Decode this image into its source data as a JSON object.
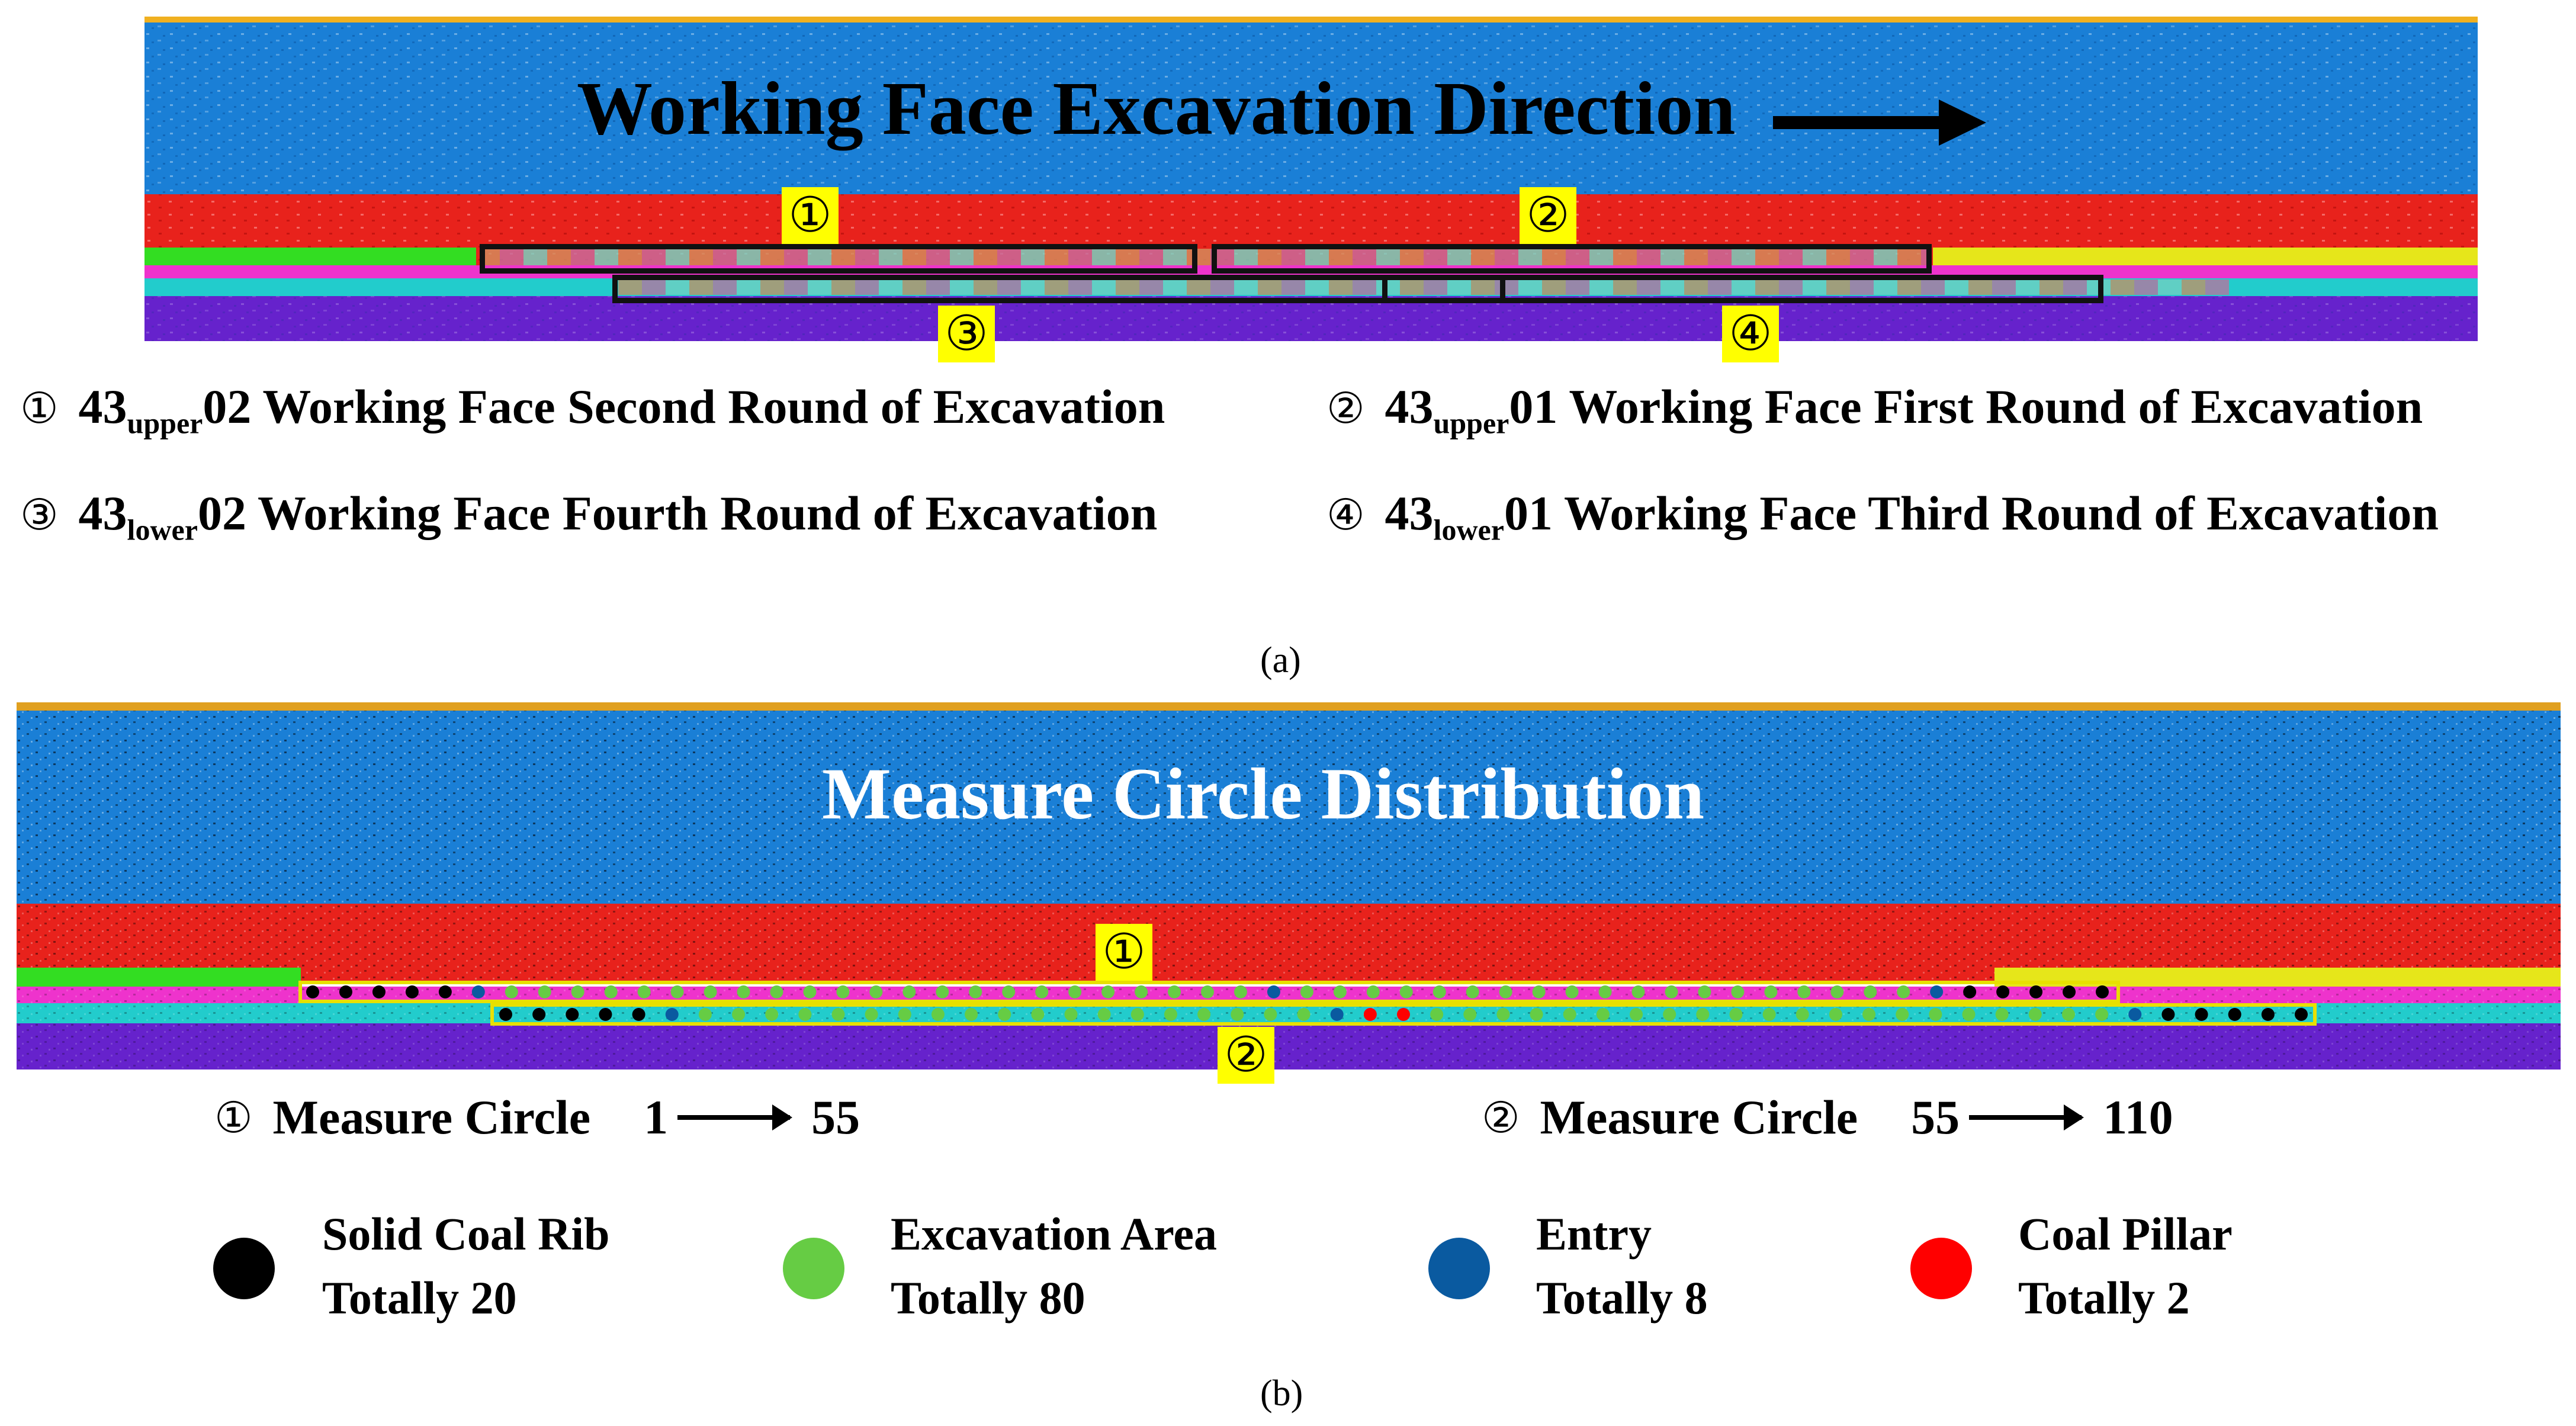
{
  "panel_a": {
    "title": "Working Face Excavation Direction",
    "tags": [
      "①",
      "②",
      "③",
      "④"
    ],
    "legend": [
      {
        "num": "①",
        "pre": "43",
        "sub": "upper",
        "post": "02 Working Face Second Round of Excavation"
      },
      {
        "num": "②",
        "pre": "43",
        "sub": "upper",
        "post": "01 Working Face First Round of Excavation"
      },
      {
        "num": "③",
        "pre": "43",
        "sub": "lower",
        "post": "02 Working Face Fourth Round of Excavation"
      },
      {
        "num": "④",
        "pre": "43",
        "sub": "lower",
        "post": "01 Working Face Third Round of Excavation"
      }
    ],
    "caption": "(a)"
  },
  "panel_b": {
    "title": "Measure Circle Distribution",
    "tags": [
      "①",
      "②"
    ],
    "measure_lines": [
      {
        "num": "①",
        "label": "Measure Circle",
        "from": "1",
        "to": "55"
      },
      {
        "num": "②",
        "label": "Measure Circle",
        "from": "55",
        "to": "110"
      }
    ],
    "dot_legend": [
      {
        "name": "Solid Coal Rib",
        "count": "Totally 20",
        "color": "#000000"
      },
      {
        "name": "Excavation Area",
        "count": "Totally 80",
        "color": "#66cc44"
      },
      {
        "name": "Entry",
        "count": "Totally 8",
        "color": "#0a5aa0"
      },
      {
        "name": "Coal Pillar",
        "count": "Totally 2",
        "color": "#ff0000"
      }
    ],
    "caption": "(b)"
  },
  "colors": {
    "overburden": "#1a7fd6",
    "red_layer": "#e8221c",
    "green_layer": "#33dd22",
    "magenta_layer": "#ee33cc",
    "cyan_layer": "#22cccc",
    "purple_layer": "#6622cc",
    "yellow_layer": "#e6e61a",
    "tag_highlight": "#ffff00"
  }
}
